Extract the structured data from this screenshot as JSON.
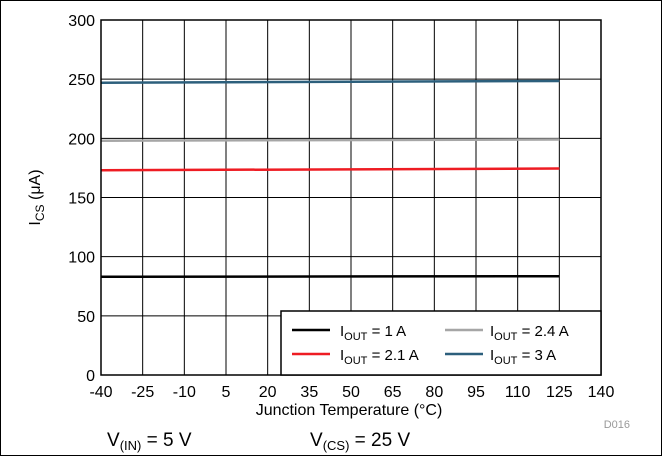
{
  "chart_data": {
    "type": "line",
    "xlabel_text": "Junction Temperature (",
    "xlabel_unit": "°C)",
    "ylabel_main": "I",
    "ylabel_sub": "CS",
    "ylabel_unit": " (μA)",
    "xlim": [
      -40,
      140
    ],
    "ylim": [
      0,
      300
    ],
    "x_ticks": [
      -40,
      -25,
      -10,
      5,
      20,
      35,
      50,
      65,
      80,
      95,
      110,
      125,
      140
    ],
    "y_ticks": [
      0,
      50,
      100,
      150,
      200,
      250,
      300
    ],
    "grid": true,
    "legend_position": "bottom-right",
    "series": [
      {
        "name": "I_OUT = 1 A",
        "label_main": "I",
        "label_sub": "OUT",
        "label_rest": " = 1 A",
        "color": "#000000",
        "x": [
          -40,
          125
        ],
        "y": [
          83,
          83.5
        ]
      },
      {
        "name": "I_OUT = 2.4 A",
        "label_main": "I",
        "label_sub": "OUT",
        "label_rest": " = 2.4 A",
        "color": "#a6a6a6",
        "x": [
          -40,
          125
        ],
        "y": [
          198,
          199
        ]
      },
      {
        "name": "I_OUT = 2.1 A",
        "label_main": "I",
        "label_sub": "OUT",
        "label_rest": " = 2.1 A",
        "color": "#ee1c23",
        "x": [
          -40,
          125
        ],
        "y": [
          173,
          174.5
        ]
      },
      {
        "name": "I_OUT = 3 A",
        "label_main": "I",
        "label_sub": "OUT",
        "label_rest": " = 3 A",
        "color": "#2c5f7c",
        "x": [
          -40,
          125
        ],
        "y": [
          247,
          248.5
        ]
      }
    ],
    "figure_id": "D016"
  },
  "conditions": {
    "vin_main": "V",
    "vin_sub": "(IN)",
    "vin_rest": " = 5 V",
    "vcs_main": "V",
    "vcs_sub": "(CS)",
    "vcs_rest": " = 25 V"
  }
}
